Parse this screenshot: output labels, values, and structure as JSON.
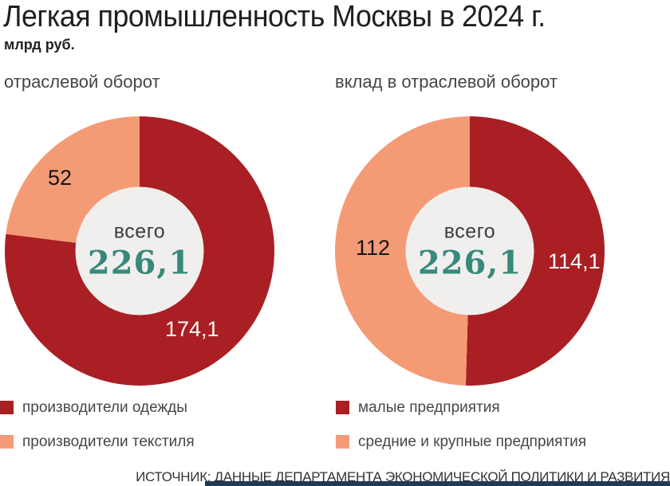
{
  "header": {
    "title": "Легкая промышленность Москвы в 2024 г.",
    "units": "млрд руб."
  },
  "source": "ИСТОЧНИК: ДАННЫЕ ДЕПАРТАМЕНТА ЭКОНОМИЧЕСКОЙ ПОЛИТИКИ И РАЗВИТИЯ",
  "colors": {
    "dark_red": "#a91f23",
    "salmon": "#f49b76",
    "hole_gray": "#f0efed",
    "teal_total": "#37897b",
    "footer_bar": "#1d3a56"
  },
  "chart_data": [
    {
      "type": "pie",
      "title": "отраслевой оборот",
      "center_label": "всего",
      "center_value": "226,1",
      "total": 226.1,
      "legend_position": "bottom-left",
      "segments": [
        {
          "label": "производители одежды",
          "value": 174.1,
          "display": "174,1",
          "color": "#a91f23"
        },
        {
          "label": "производители текстиля",
          "value": 52,
          "display": "52",
          "color": "#f49b76"
        }
      ]
    },
    {
      "type": "pie",
      "title": "вклад в отраслевой оборот",
      "center_label": "всего",
      "center_value": "226,1",
      "total": 226.1,
      "legend_position": "bottom-right",
      "segments": [
        {
          "label": "малые предприятия",
          "value": 114.1,
          "display": "114,1",
          "color": "#a91f23"
        },
        {
          "label": "средние и крупные предприятия",
          "value": 112,
          "display": "112",
          "color": "#f49b76"
        }
      ]
    }
  ]
}
